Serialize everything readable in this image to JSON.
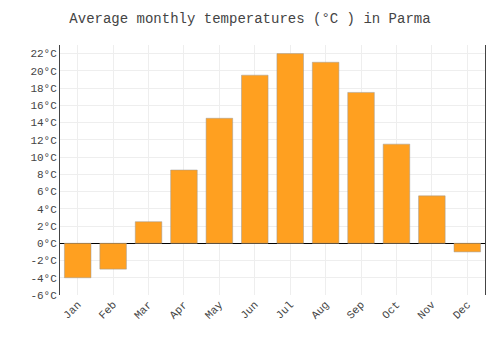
{
  "chart_data": {
    "type": "bar",
    "title": "Average monthly temperatures (°C ) in Parma",
    "categories": [
      "Jan",
      "Feb",
      "Mar",
      "Apr",
      "May",
      "Jun",
      "Jul",
      "Aug",
      "Sep",
      "Oct",
      "Nov",
      "Dec"
    ],
    "values": [
      -4.0,
      -3.0,
      2.5,
      8.5,
      14.5,
      19.5,
      22.0,
      21.0,
      17.5,
      11.5,
      5.5,
      -1.0
    ],
    "color": "#FFA020",
    "ylim": [
      -6,
      23
    ],
    "yticks": [
      {
        "value": -6,
        "label": "-6°C"
      },
      {
        "value": -4,
        "label": "-4°C"
      },
      {
        "value": -2,
        "label": "-2°C"
      },
      {
        "value": 0,
        "label": "0°C"
      },
      {
        "value": 2,
        "label": "2°C"
      },
      {
        "value": 4,
        "label": "4°C"
      },
      {
        "value": 6,
        "label": "6°C"
      },
      {
        "value": 8,
        "label": "8°C"
      },
      {
        "value": 10,
        "label": "10°C"
      },
      {
        "value": 12,
        "label": "12°C"
      },
      {
        "value": 14,
        "label": "14°C"
      },
      {
        "value": 16,
        "label": "16°C"
      },
      {
        "value": 18,
        "label": "18°C"
      },
      {
        "value": 20,
        "label": "20°C"
      },
      {
        "value": 22,
        "label": "22°C"
      }
    ],
    "grid": true
  }
}
